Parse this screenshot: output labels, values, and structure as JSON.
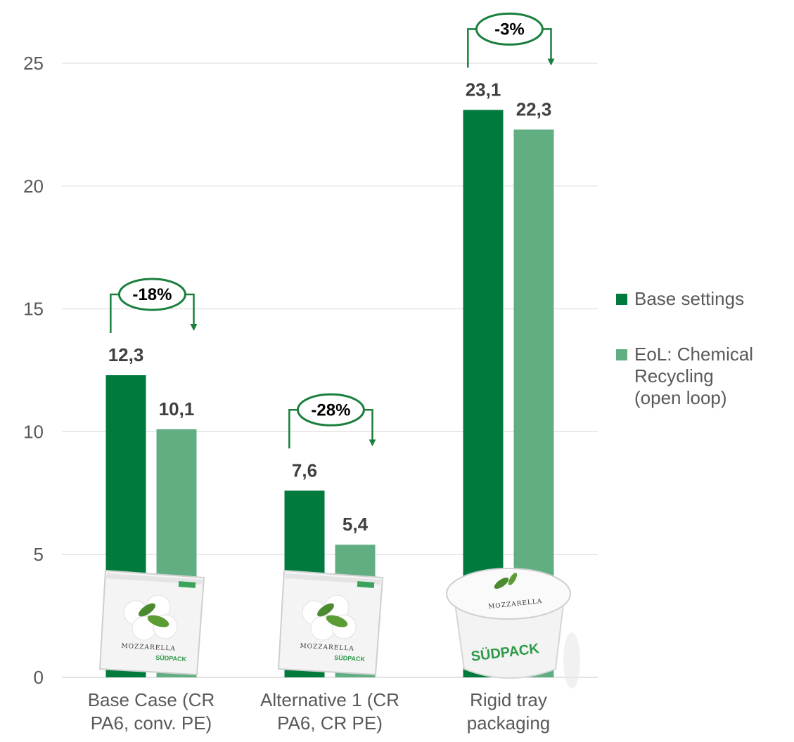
{
  "chart_data": {
    "type": "bar",
    "categories": [
      [
        "Base Case (CR",
        "PA6, conv. PE)"
      ],
      [
        "Alternative 1 (CR",
        "PA6, CR PE)"
      ],
      [
        "Rigid tray",
        "packaging"
      ]
    ],
    "series": [
      {
        "name": "Base settings",
        "color": "#007a3d",
        "values": [
          12.3,
          7.6,
          23.1
        ]
      },
      {
        "name": "EoL: Chemical Recycling (open loop)",
        "color": "#62ae83",
        "values": [
          10.1,
          5.4,
          22.3
        ]
      }
    ],
    "data_labels": [
      [
        "12,3",
        "7,6",
        "23,1"
      ],
      [
        "10,1",
        "5,4",
        "22,3"
      ]
    ],
    "ylim": [
      0,
      25
    ],
    "yticks": [
      0,
      5,
      10,
      15,
      20,
      25
    ],
    "grid": true,
    "legend_position": "right",
    "annotations": [
      {
        "category": 0,
        "text": "-18%"
      },
      {
        "category": 1,
        "text": "-28%"
      },
      {
        "category": 2,
        "text": "-3%"
      }
    ],
    "product_images": [
      {
        "category": 0,
        "kind": "pouch",
        "label": "MOZZARELLA",
        "brand": "SÜDPACK"
      },
      {
        "category": 1,
        "kind": "pouch",
        "label": "MOZZARELLA",
        "brand": "SÜDPACK"
      },
      {
        "category": 2,
        "kind": "tray",
        "label": "MOZZARELLA",
        "brand": "SÜDPACK"
      }
    ]
  },
  "legend": {
    "items": [
      {
        "label_lines": [
          "Base settings"
        ]
      },
      {
        "label_lines": [
          "EoL: Chemical",
          "Recycling",
          "(open loop)"
        ]
      }
    ]
  },
  "colors": {
    "accent": "#007a3d",
    "accent_light": "#62ae83",
    "grid": "#d9d9d9"
  }
}
